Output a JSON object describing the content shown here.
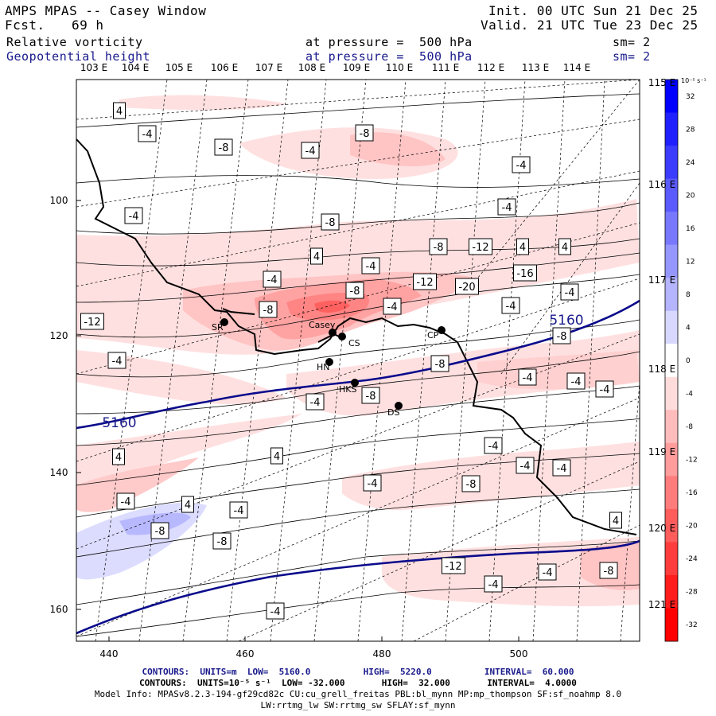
{
  "header": {
    "title": "AMPS MPAS -- Casey Window",
    "fcst_label": "Fcst.",
    "fcst_value": "69 h",
    "init": "Init. 00 UTC Sun 21 Dec 25",
    "valid": "Valid. 21 UTC Tue 23 Dec 25",
    "field1": "Relative vorticity",
    "field1_level": "at pressure =  500 hPa",
    "field1_sm": "sm= 2",
    "field2": "Geopotential height",
    "field2_level": "at pressure =  500 hPa",
    "field2_sm": "sm= 2"
  },
  "map": {
    "top_lon_labels": [
      "103 E",
      "104 E",
      "105 E",
      "106 E",
      "107 E",
      "108 E",
      "109 E",
      "110 E",
      "111 E",
      "112 E",
      "113 E",
      "114 E"
    ],
    "right_lon_labels": [
      "115 E",
      "116 E",
      "117 E",
      "118 E",
      "119 E",
      "120 E",
      "121 E"
    ],
    "left_y_labels": [
      "100",
      "120",
      "140",
      "160"
    ],
    "bottom_x_labels": [
      "440",
      "460",
      "480",
      "500"
    ],
    "stations": [
      {
        "name": "SR"
      },
      {
        "name": "Casey"
      },
      {
        "name": "CS"
      },
      {
        "name": "CP"
      },
      {
        "name": "HN"
      },
      {
        "name": "HKS"
      },
      {
        "name": "DS"
      }
    ],
    "height_contour_labels": [
      "5160",
      "5160"
    ],
    "vorticity_labels": [
      "4",
      "-4",
      "-8",
      "-4",
      "-8",
      "-4",
      "-4",
      "-8",
      "-4",
      "4",
      "-4",
      "-4",
      "-8",
      "-12",
      "-20",
      "-16",
      "-12",
      "-8",
      "-4",
      "-4",
      "-4",
      "-8",
      "-4",
      "-8",
      "-4",
      "-4",
      "-4",
      "-4",
      "-8",
      "-4",
      "4",
      "4",
      "-4",
      "-8",
      "-4",
      "-4",
      "-4",
      "4",
      "-4",
      "-8",
      "-8",
      "4",
      "-12",
      "-4",
      "-4",
      "-8",
      "-4",
      "-8",
      "-12",
      "4",
      "4"
    ]
  },
  "colorbar": {
    "unit": "10⁻⁵ s⁻¹",
    "ticks": [
      "32",
      "28",
      "24",
      "20",
      "16",
      "12",
      "8",
      "4",
      "0",
      "-4",
      "-8",
      "-12",
      "-16",
      "-20",
      "-24",
      "-28",
      "-32"
    ],
    "colors": [
      "#0000ff",
      "#2020ff",
      "#3c3cff",
      "#5a5aff",
      "#7878ff",
      "#9696ff",
      "#b4b4ff",
      "#d8d8ff",
      "#ffffff",
      "#ffdcdc",
      "#ffbcbc",
      "#ff9c9c",
      "#ff7c7c",
      "#ff5c5c",
      "#ff3c3c",
      "#ff1c1c",
      "#ff0000"
    ]
  },
  "footer": {
    "line1": "CONTOURS:  UNITS=m  LOW=  5160.0          HIGH=  5220.0          INTERVAL=  60.000",
    "line2": "CONTOURS:  UNITS=10⁻⁵ s⁻¹  LOW= -32.000       HIGH=  32.000       INTERVAL=  4.0000",
    "line3": "Model Info: MPASv8.2.3-194-gf29cd82c CU:cu_grell_freitas PBL:bl_mynn MP:mp_thompson SF:sf_noahmp 8.0",
    "line4": "LW:rrtmg_lw SW:rrtmg_sw SFLAY:sf_mynn"
  }
}
